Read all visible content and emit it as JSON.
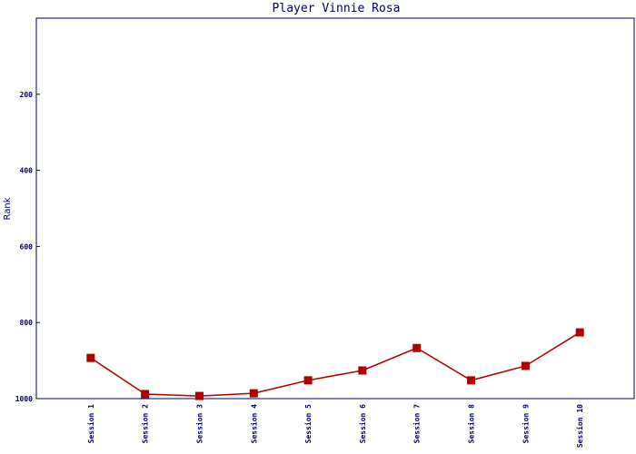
{
  "chart_data": {
    "type": "line",
    "title": "Player Vinnie Rosa",
    "y_label": "Rank",
    "categories": [
      "Session 1",
      "Session 2",
      "Session 3",
      "Session 4",
      "Session 5",
      "Session 6",
      "Session 7",
      "Session 8",
      "Session 9",
      "Session 10"
    ],
    "series": [
      {
        "name": "Rank",
        "color": "#b00000",
        "values": [
          893,
          988,
          993,
          986,
          952,
          926,
          867,
          952,
          914,
          826
        ]
      }
    ],
    "ylim": [
      0,
      1000
    ],
    "y_inverted": true,
    "yticks": [
      200,
      400,
      600,
      800,
      1000
    ],
    "grid": false
  }
}
